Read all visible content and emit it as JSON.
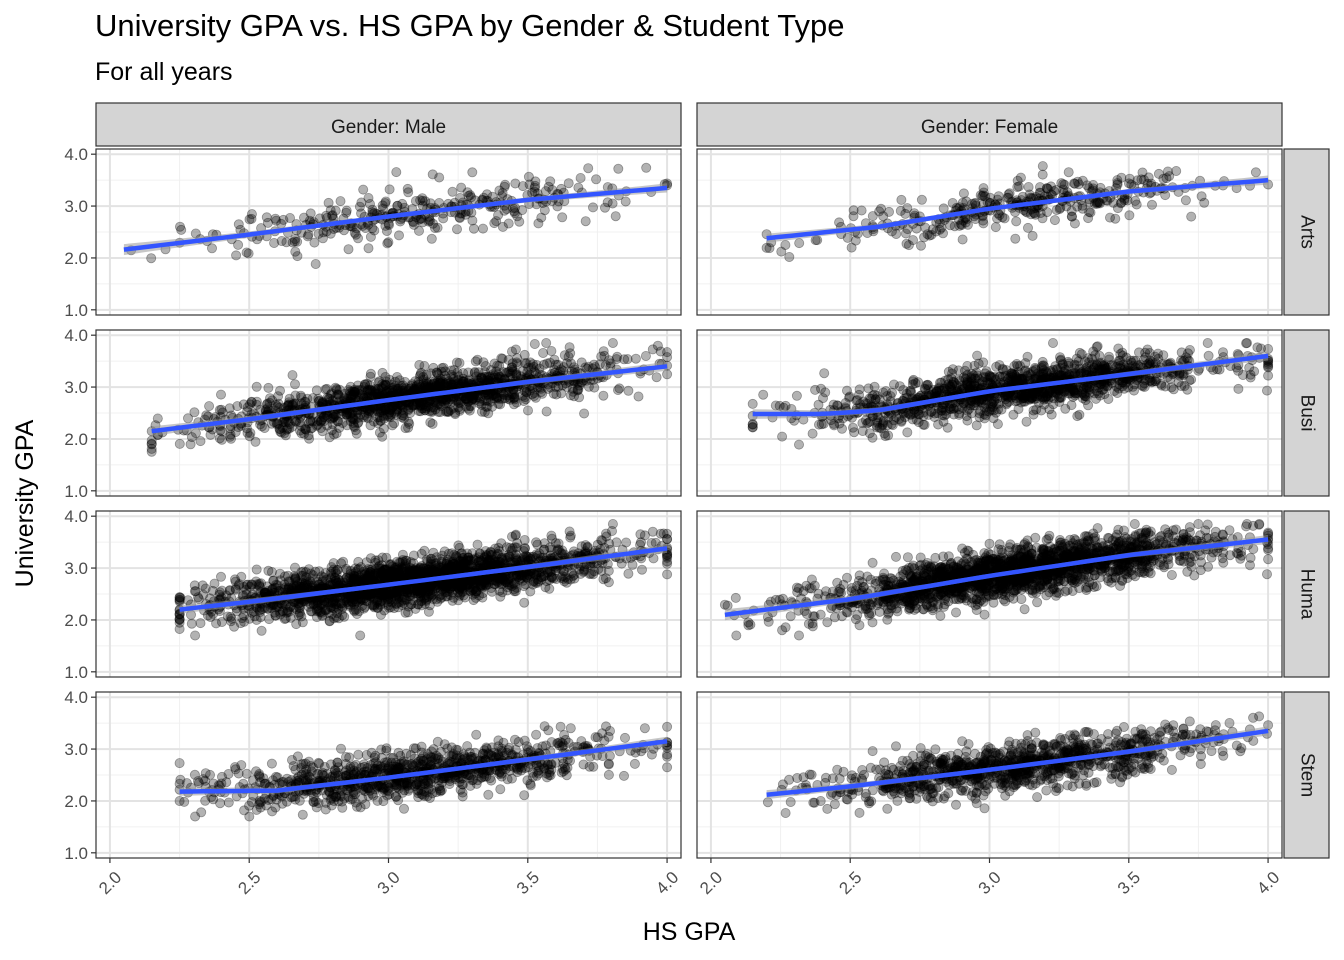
{
  "chart_data": {
    "type": "scatter",
    "title": "University GPA vs. HS GPA by Gender & Student Type",
    "subtitle": "For all years",
    "xlabel": "HS GPA",
    "ylabel": "University GPA",
    "xlim": [
      1.95,
      4.05
    ],
    "ylim": [
      0.9,
      4.1
    ],
    "x_ticks": [
      "2.0",
      "2.5",
      "3.0",
      "3.5",
      "4.0"
    ],
    "y_ticks": [
      "1.0",
      "2.0",
      "3.0",
      "4.0"
    ],
    "grid": true,
    "facet_columns": [
      "Gender: Male",
      "Gender: Female"
    ],
    "facet_rows": [
      "Arts",
      "Busi",
      "Huma",
      "Stem"
    ],
    "series_colors": {
      "points": "#000000",
      "smooth": "#3355ff",
      "band": "#999999"
    },
    "panels": [
      {
        "column": "Gender: Male",
        "row": "Arts",
        "density": 330,
        "x_range": [
          2.05,
          4.0
        ],
        "fit": [
          [
            2.05,
            2.16
          ],
          [
            2.5,
            2.45
          ],
          [
            3.0,
            2.8
          ],
          [
            3.5,
            3.12
          ],
          [
            4.0,
            3.35
          ]
        ]
      },
      {
        "column": "Gender: Female",
        "row": "Arts",
        "density": 360,
        "x_range": [
          2.2,
          4.0
        ],
        "fit": [
          [
            2.2,
            2.38
          ],
          [
            2.6,
            2.6
          ],
          [
            3.0,
            2.95
          ],
          [
            3.5,
            3.28
          ],
          [
            4.0,
            3.5
          ]
        ]
      },
      {
        "column": "Gender: Male",
        "row": "Busi",
        "density": 1400,
        "x_range": [
          2.15,
          4.0
        ],
        "fit": [
          [
            2.15,
            2.15
          ],
          [
            2.5,
            2.38
          ],
          [
            3.0,
            2.75
          ],
          [
            3.5,
            3.1
          ],
          [
            4.0,
            3.4
          ]
        ]
      },
      {
        "column": "Gender: Female",
        "row": "Busi",
        "density": 1300,
        "x_range": [
          2.15,
          4.0
        ],
        "fit": [
          [
            2.15,
            2.48
          ],
          [
            2.4,
            2.48
          ],
          [
            2.6,
            2.55
          ],
          [
            3.0,
            2.92
          ],
          [
            3.5,
            3.25
          ],
          [
            4.0,
            3.6
          ]
        ]
      },
      {
        "column": "Gender: Male",
        "row": "Huma",
        "density": 2200,
        "x_range": [
          2.25,
          4.0
        ],
        "fit": [
          [
            2.25,
            2.2
          ],
          [
            2.5,
            2.35
          ],
          [
            3.0,
            2.68
          ],
          [
            3.5,
            3.02
          ],
          [
            4.0,
            3.38
          ]
        ]
      },
      {
        "column": "Gender: Female",
        "row": "Huma",
        "density": 2000,
        "x_range": [
          2.05,
          4.0
        ],
        "fit": [
          [
            2.05,
            2.1
          ],
          [
            2.5,
            2.4
          ],
          [
            3.0,
            2.85
          ],
          [
            3.5,
            3.25
          ],
          [
            4.0,
            3.55
          ]
        ]
      },
      {
        "column": "Gender: Male",
        "row": "Stem",
        "density": 1000,
        "x_range": [
          2.25,
          4.0
        ],
        "fit": [
          [
            2.25,
            2.18
          ],
          [
            2.6,
            2.2
          ],
          [
            3.0,
            2.45
          ],
          [
            3.5,
            2.8
          ],
          [
            4.0,
            3.15
          ]
        ]
      },
      {
        "column": "Gender: Female",
        "row": "Stem",
        "density": 1000,
        "x_range": [
          2.2,
          4.0
        ],
        "fit": [
          [
            2.2,
            2.12
          ],
          [
            2.5,
            2.28
          ],
          [
            3.0,
            2.6
          ],
          [
            3.5,
            2.95
          ],
          [
            4.0,
            3.35
          ]
        ]
      }
    ]
  }
}
